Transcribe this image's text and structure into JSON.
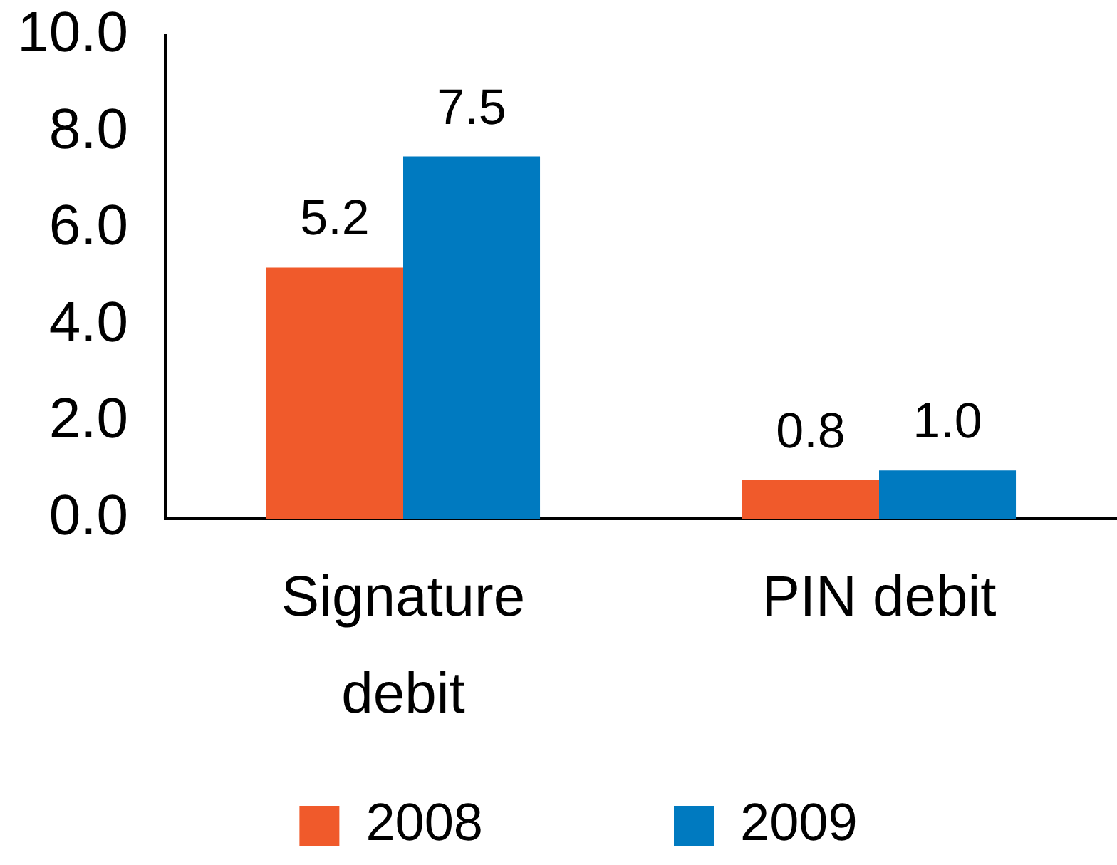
{
  "chart_data": {
    "type": "bar",
    "categories": [
      "Signature debit",
      "PIN debit"
    ],
    "series": [
      {
        "name": "2008",
        "color": "#f05a2b",
        "values": [
          5.2,
          0.8
        ],
        "value_labels": [
          "5.2",
          "0.8"
        ]
      },
      {
        "name": "2009",
        "color": "#007ac0",
        "values": [
          7.5,
          1.0
        ],
        "value_labels": [
          "7.5",
          "1.0"
        ]
      }
    ],
    "ylim": [
      0,
      10
    ],
    "yticks": [
      {
        "value": 0,
        "label": "0.0"
      },
      {
        "value": 2,
        "label": "2.0"
      },
      {
        "value": 4,
        "label": "4.0"
      },
      {
        "value": 6,
        "label": "6.0"
      },
      {
        "value": 8,
        "label": "8.0"
      },
      {
        "value": 10,
        "label": "10.0"
      }
    ],
    "grid": false,
    "legend": "bottom"
  }
}
